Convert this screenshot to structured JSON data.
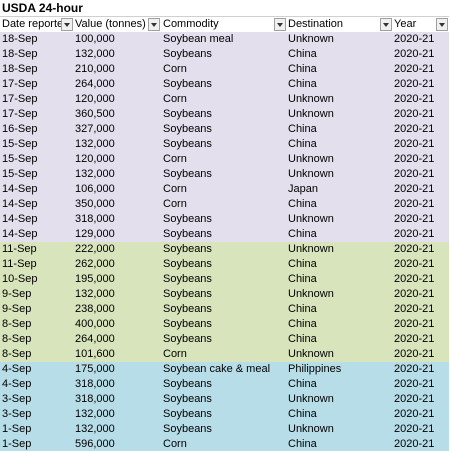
{
  "title": "USDA 24-hour",
  "table": {
    "headers": [
      "Date reporte",
      "Value (tonnes)",
      "Commodity",
      "Destination",
      "Year"
    ],
    "groups": [
      {
        "color": "#e4dfec",
        "rows": [
          [
            "18-Sep",
            "100,000",
            "Soybean meal",
            "Unknown",
            "2020-21"
          ],
          [
            "18-Sep",
            "132,000",
            "Soybeans",
            "China",
            "2020-21"
          ],
          [
            "18-Sep",
            "210,000",
            "Corn",
            "China",
            "2020-21"
          ],
          [
            "17-Sep",
            "264,000",
            "Soybeans",
            "China",
            "2020-21"
          ],
          [
            "17-Sep",
            "120,000",
            "Corn",
            "Unknown",
            "2020-21"
          ],
          [
            "17-Sep",
            "360,500",
            "Soybeans",
            "Unknown",
            "2020-21"
          ],
          [
            "16-Sep",
            "327,000",
            "Soybeans",
            "China",
            "2020-21"
          ],
          [
            "15-Sep",
            "132,000",
            "Soybeans",
            "China",
            "2020-21"
          ],
          [
            "15-Sep",
            "120,000",
            "Corn",
            "Unknown",
            "2020-21"
          ],
          [
            "15-Sep",
            "132,000",
            "Soybeans",
            "Unknown",
            "2020-21"
          ],
          [
            "14-Sep",
            "106,000",
            "Corn",
            "Japan",
            "2020-21"
          ],
          [
            "14-Sep",
            "350,000",
            "Corn",
            "China",
            "2020-21"
          ],
          [
            "14-Sep",
            "318,000",
            "Soybeans",
            "Unknown",
            "2020-21"
          ],
          [
            "14-Sep",
            "129,000",
            "Soybeans",
            "China",
            "2020-21"
          ]
        ]
      },
      {
        "color": "#d8e4bc",
        "rows": [
          [
            "11-Sep",
            "222,000",
            "Soybeans",
            "Unknown",
            "2020-21"
          ],
          [
            "11-Sep",
            "262,000",
            "Soybeans",
            "China",
            "2020-21"
          ],
          [
            "10-Sep",
            "195,000",
            "Soybeans",
            "China",
            "2020-21"
          ],
          [
            "9-Sep",
            "132,000",
            "Soybeans",
            "Unknown",
            "2020-21"
          ],
          [
            "9-Sep",
            "238,000",
            "Soybeans",
            "China",
            "2020-21"
          ],
          [
            "8-Sep",
            "400,000",
            "Soybeans",
            "China",
            "2020-21"
          ],
          [
            "8-Sep",
            "264,000",
            "Soybeans",
            "China",
            "2020-21"
          ],
          [
            "8-Sep",
            "101,600",
            "Corn",
            "Unknown",
            "2020-21"
          ]
        ]
      },
      {
        "color": "#b7dee8",
        "rows": [
          [
            "4-Sep",
            "175,000",
            "Soybean cake & meal",
            "Philippines",
            "2020-21"
          ],
          [
            "4-Sep",
            "318,000",
            "Soybeans",
            "China",
            "2020-21"
          ],
          [
            "3-Sep",
            "318,000",
            "Soybeans",
            "Unknown",
            "2020-21"
          ],
          [
            "3-Sep",
            "132,000",
            "Soybeans",
            "China",
            "2020-21"
          ],
          [
            "1-Sep",
            "132,000",
            "Soybeans",
            "Unknown",
            "2020-21"
          ],
          [
            "1-Sep",
            "596,000",
            "Corn",
            "China",
            "2020-21"
          ]
        ]
      }
    ]
  }
}
